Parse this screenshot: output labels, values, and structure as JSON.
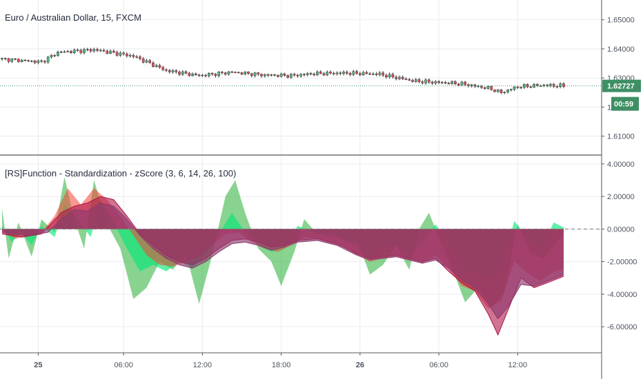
{
  "colors": {
    "grid": "#e9ebf0",
    "axis": "#555555",
    "up": "#53b987",
    "down": "#eb4d5c",
    "wick": "#333333",
    "price_line": "#3a8f6a",
    "badge": "#3f8f64",
    "series1": "#41b84e",
    "series2": "#00e676",
    "series3": "#f44336",
    "series4": "#b0174a",
    "series5": "#8e3a6f",
    "zero_line": "#777777"
  },
  "chart_data": [
    {
      "type": "candlestick",
      "title": "Euro / Australian Dollar, 15, FXCM",
      "ylim": [
        1.6035,
        1.6568
      ],
      "yticks": [
        "1.65000",
        "1.64000",
        "1.63000",
        "1.62000",
        "1.61000"
      ],
      "ytick_values": [
        1.65,
        1.64,
        1.63,
        1.62,
        1.61
      ],
      "xticks": [
        "25",
        "06:00",
        "12:00",
        "18:00",
        "26",
        "06:00",
        "12:00"
      ],
      "xtick_bars": [
        11,
        37,
        61,
        85,
        109,
        133,
        157
      ],
      "bar_count": 172,
      "close_keyframes": [
        [
          0,
          1.6365
        ],
        [
          12,
          1.6355
        ],
        [
          17,
          1.6388
        ],
        [
          28,
          1.6397
        ],
        [
          40,
          1.6375
        ],
        [
          50,
          1.6325
        ],
        [
          60,
          1.6308
        ],
        [
          70,
          1.632
        ],
        [
          80,
          1.631
        ],
        [
          88,
          1.6308
        ],
        [
          95,
          1.6315
        ],
        [
          105,
          1.6317
        ],
        [
          115,
          1.6313
        ],
        [
          125,
          1.629
        ],
        [
          132,
          1.6285
        ],
        [
          140,
          1.628
        ],
        [
          148,
          1.6265
        ],
        [
          152,
          1.625
        ],
        [
          157,
          1.627
        ],
        [
          165,
          1.6275
        ],
        [
          171,
          1.6273
        ]
      ],
      "last_price": "1.62727",
      "countdown": "00:59"
    },
    {
      "type": "area",
      "title": "[RS]Function - Standardization - zScore (3, 6, 14, 26, 100)",
      "ylim": [
        -7.6,
        4.5
      ],
      "yticks": [
        "4.00000",
        "2.00000",
        "0.00000",
        "-2.00000",
        "-4.00000",
        "-6.00000"
      ],
      "ytick_values": [
        4,
        2,
        0,
        -2,
        -4,
        -6
      ],
      "series": [
        {
          "name": "3",
          "keyframes": [
            [
              0,
              1.3
            ],
            [
              2,
              -1.8
            ],
            [
              5,
              0.4
            ],
            [
              9,
              -1.7
            ],
            [
              12,
              0.6
            ],
            [
              16,
              -0.2
            ],
            [
              19,
              3.2
            ],
            [
              22,
              0.6
            ],
            [
              25,
              -1.2
            ],
            [
              28,
              3.0
            ],
            [
              32,
              0.3
            ],
            [
              36,
              -1.2
            ],
            [
              40,
              -4.3
            ],
            [
              44,
              -3.6
            ],
            [
              48,
              -2.0
            ],
            [
              52,
              -2.5
            ],
            [
              56,
              -1.5
            ],
            [
              60,
              -4.6
            ],
            [
              64,
              -1.6
            ],
            [
              68,
              2.0
            ],
            [
              71,
              3.0
            ],
            [
              74,
              1.0
            ],
            [
              78,
              -1.2
            ],
            [
              82,
              -2.0
            ],
            [
              85,
              -3.5
            ],
            [
              89,
              -1.4
            ],
            [
              92,
              0.6
            ],
            [
              96,
              -0.3
            ],
            [
              101,
              -0.2
            ],
            [
              105,
              -0.8
            ],
            [
              108,
              -0.6
            ],
            [
              112,
              -2.8
            ],
            [
              116,
              -2.2
            ],
            [
              120,
              -1.0
            ],
            [
              124,
              -2.5
            ],
            [
              127,
              0.0
            ],
            [
              130,
              1.0
            ],
            [
              134,
              -1.0
            ],
            [
              137,
              -2.4
            ],
            [
              141,
              -4.5
            ],
            [
              145,
              -3.6
            ],
            [
              149,
              -4.8
            ],
            [
              153,
              -3.8
            ],
            [
              157,
              0.3
            ],
            [
              161,
              -1.5
            ],
            [
              165,
              -1.8
            ],
            [
              168,
              -1.0
            ],
            [
              171,
              -0.3
            ]
          ]
        },
        {
          "name": "6",
          "keyframes": [
            [
              0,
              0.2
            ],
            [
              3,
              -0.8
            ],
            [
              6,
              -0.2
            ],
            [
              9,
              -1.0
            ],
            [
              12,
              0.2
            ],
            [
              16,
              -0.5
            ],
            [
              19,
              1.5
            ],
            [
              23,
              0.6
            ],
            [
              27,
              -0.5
            ],
            [
              30,
              1.8
            ],
            [
              34,
              0.4
            ],
            [
              38,
              -1.2
            ],
            [
              42,
              -2.6
            ],
            [
              46,
              -2.2
            ],
            [
              50,
              -2.6
            ],
            [
              54,
              -2.0
            ],
            [
              58,
              -2.4
            ],
            [
              62,
              -1.5
            ],
            [
              66,
              -0.3
            ],
            [
              70,
              1.0
            ],
            [
              74,
              -0.2
            ],
            [
              78,
              -1.0
            ],
            [
              82,
              -1.4
            ],
            [
              86,
              -1.2
            ],
            [
              90,
              0.2
            ],
            [
              96,
              -0.3
            ],
            [
              102,
              -0.5
            ],
            [
              108,
              -1.0
            ],
            [
              112,
              -1.8
            ],
            [
              116,
              -1.2
            ],
            [
              120,
              -1.0
            ],
            [
              124,
              -1.6
            ],
            [
              128,
              -0.8
            ],
            [
              132,
              0.3
            ],
            [
              136,
              -0.8
            ],
            [
              140,
              -2.5
            ],
            [
              144,
              -2.6
            ],
            [
              148,
              -3.2
            ],
            [
              152,
              -2.4
            ],
            [
              156,
              0.5
            ],
            [
              160,
              -0.6
            ],
            [
              164,
              -1.2
            ],
            [
              168,
              0.4
            ],
            [
              171,
              0.1
            ]
          ]
        },
        {
          "name": "14",
          "keyframes": [
            [
              0,
              -0.1
            ],
            [
              4,
              -0.6
            ],
            [
              8,
              -0.4
            ],
            [
              12,
              -0.2
            ],
            [
              16,
              0.8
            ],
            [
              20,
              2.5
            ],
            [
              24,
              1.5
            ],
            [
              28,
              2.5
            ],
            [
              32,
              1.8
            ],
            [
              36,
              0.8
            ],
            [
              40,
              -0.4
            ],
            [
              44,
              -1.6
            ],
            [
              48,
              -2.2
            ],
            [
              52,
              -2.3
            ],
            [
              56,
              -2.0
            ],
            [
              60,
              -1.7
            ],
            [
              64,
              -1.0
            ],
            [
              68,
              -0.3
            ],
            [
              72,
              -0.2
            ],
            [
              76,
              -0.8
            ],
            [
              80,
              -1.2
            ],
            [
              84,
              -1.4
            ],
            [
              88,
              -1.0
            ],
            [
              92,
              -0.5
            ],
            [
              96,
              -0.6
            ],
            [
              100,
              -0.9
            ],
            [
              104,
              -1.1
            ],
            [
              108,
              -1.6
            ],
            [
              112,
              -2.0
            ],
            [
              116,
              -1.8
            ],
            [
              120,
              -1.7
            ],
            [
              124,
              -1.9
            ],
            [
              128,
              -2.1
            ],
            [
              132,
              -1.6
            ],
            [
              136,
              -2.4
            ],
            [
              140,
              -3.5
            ],
            [
              144,
              -3.8
            ],
            [
              148,
              -4.9
            ],
            [
              152,
              -4.4
            ],
            [
              156,
              -2.0
            ],
            [
              160,
              -2.7
            ],
            [
              164,
              -3.2
            ],
            [
              168,
              -2.6
            ],
            [
              171,
              -2.5
            ]
          ]
        },
        {
          "name": "26",
          "keyframes": [
            [
              0,
              -0.3
            ],
            [
              6,
              -0.5
            ],
            [
              12,
              -0.3
            ],
            [
              18,
              1.0
            ],
            [
              22,
              1.4
            ],
            [
              26,
              1.6
            ],
            [
              30,
              2.0
            ],
            [
              34,
              1.8
            ],
            [
              38,
              0.8
            ],
            [
              42,
              -0.3
            ],
            [
              46,
              -1.0
            ],
            [
              50,
              -1.6
            ],
            [
              54,
              -2.0
            ],
            [
              58,
              -2.2
            ],
            [
              62,
              -1.8
            ],
            [
              66,
              -1.2
            ],
            [
              70,
              -0.7
            ],
            [
              74,
              -0.6
            ],
            [
              78,
              -0.8
            ],
            [
              82,
              -1.1
            ],
            [
              86,
              -1.0
            ],
            [
              90,
              -0.7
            ],
            [
              96,
              -0.6
            ],
            [
              102,
              -0.9
            ],
            [
              108,
              -1.5
            ],
            [
              112,
              -1.8
            ],
            [
              116,
              -1.7
            ],
            [
              120,
              -1.6
            ],
            [
              124,
              -1.8
            ],
            [
              128,
              -2.0
            ],
            [
              132,
              -1.8
            ],
            [
              136,
              -2.6
            ],
            [
              140,
              -3.3
            ],
            [
              144,
              -3.8
            ],
            [
              148,
              -5.2
            ],
            [
              151,
              -6.5
            ],
            [
              154,
              -5.0
            ],
            [
              158,
              -3.0
            ],
            [
              162,
              -3.6
            ],
            [
              166,
              -3.3
            ],
            [
              171,
              -2.9
            ]
          ]
        },
        {
          "name": "100",
          "keyframes": [
            [
              0,
              -0.2
            ],
            [
              8,
              -0.4
            ],
            [
              14,
              -0.2
            ],
            [
              18,
              0.6
            ],
            [
              22,
              1.2
            ],
            [
              26,
              1.1
            ],
            [
              30,
              1.6
            ],
            [
              34,
              1.4
            ],
            [
              38,
              0.6
            ],
            [
              42,
              -0.4
            ],
            [
              46,
              -1.2
            ],
            [
              50,
              -1.8
            ],
            [
              54,
              -2.2
            ],
            [
              58,
              -2.4
            ],
            [
              62,
              -2.0
            ],
            [
              66,
              -1.4
            ],
            [
              70,
              -0.9
            ],
            [
              74,
              -0.8
            ],
            [
              78,
              -1.0
            ],
            [
              82,
              -1.3
            ],
            [
              86,
              -1.1
            ],
            [
              90,
              -0.8
            ],
            [
              96,
              -0.7
            ],
            [
              102,
              -1.0
            ],
            [
              108,
              -1.6
            ],
            [
              112,
              -1.9
            ],
            [
              116,
              -1.8
            ],
            [
              120,
              -1.7
            ],
            [
              124,
              -1.9
            ],
            [
              128,
              -2.1
            ],
            [
              132,
              -1.9
            ],
            [
              136,
              -2.4
            ],
            [
              140,
              -3.1
            ],
            [
              144,
              -3.6
            ],
            [
              148,
              -4.6
            ],
            [
              151,
              -5.5
            ],
            [
              154,
              -4.8
            ],
            [
              158,
              -3.4
            ],
            [
              162,
              -3.5
            ],
            [
              166,
              -3.2
            ],
            [
              171,
              -2.8
            ]
          ]
        }
      ]
    }
  ]
}
